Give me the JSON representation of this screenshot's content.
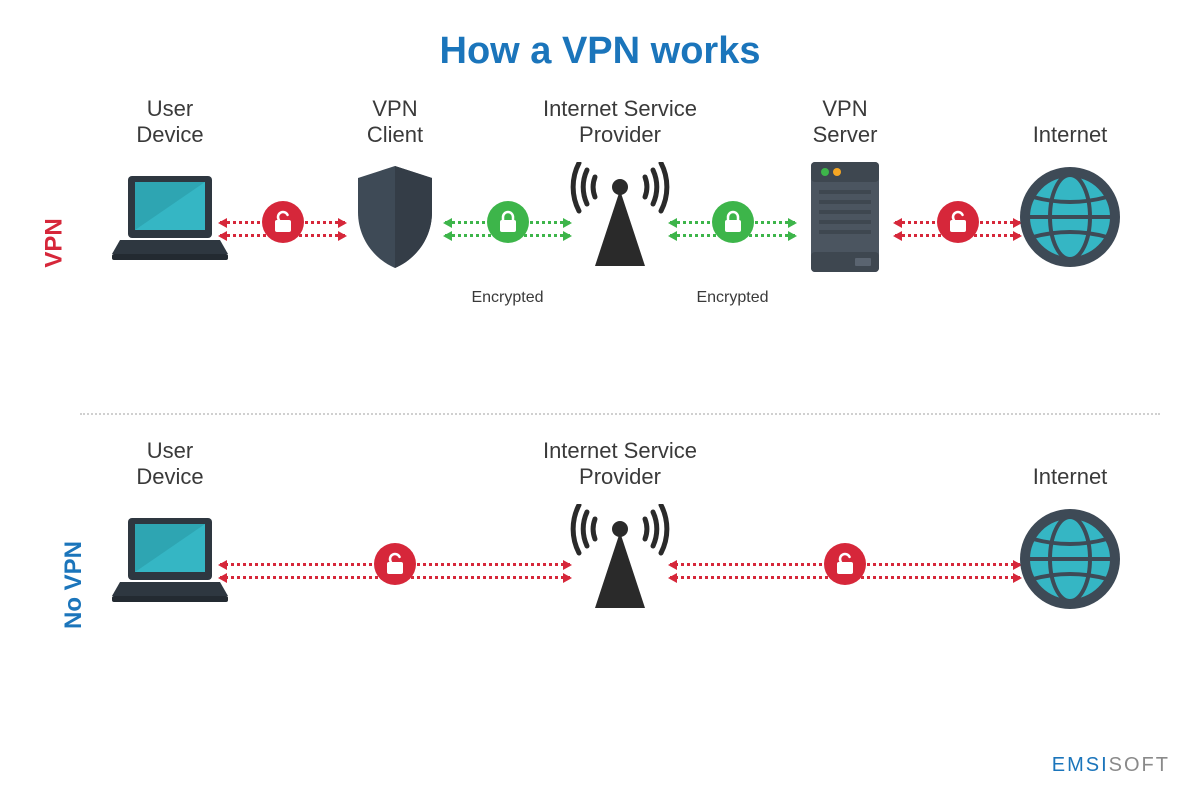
{
  "title": "How a VPN works",
  "title_color": "#1b75bb",
  "label_color": "#3a3a3a",
  "sublabel_color": "#3a3a3a",
  "colors": {
    "encrypted": "#3db54a",
    "unencrypted": "#d6273a",
    "shield": "#3e4a56",
    "server_body": "#4b5560",
    "server_dark": "#3e4750",
    "laptop_body": "#2e3740",
    "laptop_screen": "#35b6c4",
    "laptop_screen2": "#2a9aa6",
    "globe": "#35b6c4",
    "globe_ring": "#3e4a56",
    "tower": "#2a2a2a",
    "row_label_vpn": "#d6273a",
    "row_label_novpn": "#1b75bb",
    "lock_icon": "#ffffff",
    "server_light1": "#3db54a",
    "server_light2": "#f5a623",
    "background": "#ffffff"
  },
  "rows": [
    {
      "id": "vpn",
      "label": "VPN",
      "label_color_key": "row_label_vpn",
      "nodes": [
        {
          "id": "device",
          "label": "User\nDevice",
          "icon": "laptop",
          "sub": ""
        },
        {
          "id": "client",
          "label": "VPN\nClient",
          "icon": "shield",
          "sub": ""
        },
        {
          "id": "isp",
          "label": "Internet Service\nProvider",
          "icon": "tower",
          "sub": ""
        },
        {
          "id": "server",
          "label": "VPN\nServer",
          "icon": "server",
          "sub": ""
        },
        {
          "id": "internet",
          "label": "Internet",
          "icon": "globe",
          "sub": ""
        }
      ],
      "connectors": [
        {
          "from": 0,
          "to": 1,
          "encrypted": false,
          "sub": ""
        },
        {
          "from": 1,
          "to": 2,
          "encrypted": true,
          "sub": "Encrypted"
        },
        {
          "from": 2,
          "to": 3,
          "encrypted": true,
          "sub": "Encrypted"
        },
        {
          "from": 3,
          "to": 4,
          "encrypted": false,
          "sub": ""
        }
      ]
    },
    {
      "id": "novpn",
      "label": "No VPN",
      "label_color_key": "row_label_novpn",
      "nodes": [
        {
          "id": "device",
          "label": "User\nDevice",
          "icon": "laptop",
          "sub": ""
        },
        {
          "id": "isp",
          "label": "Internet Service\nProvider",
          "icon": "tower",
          "sub": ""
        },
        {
          "id": "internet",
          "label": "Internet",
          "icon": "globe",
          "sub": ""
        }
      ],
      "connectors": [
        {
          "from": 0,
          "to": 1,
          "encrypted": false,
          "sub": ""
        },
        {
          "from": 1,
          "to": 2,
          "encrypted": false,
          "sub": ""
        }
      ]
    }
  ],
  "brand_prefix": "EMSI",
  "brand_suffix": "SOFT",
  "brand_prefix_color": "#1b75bb",
  "brand_suffix_color": "#8a8a8a"
}
